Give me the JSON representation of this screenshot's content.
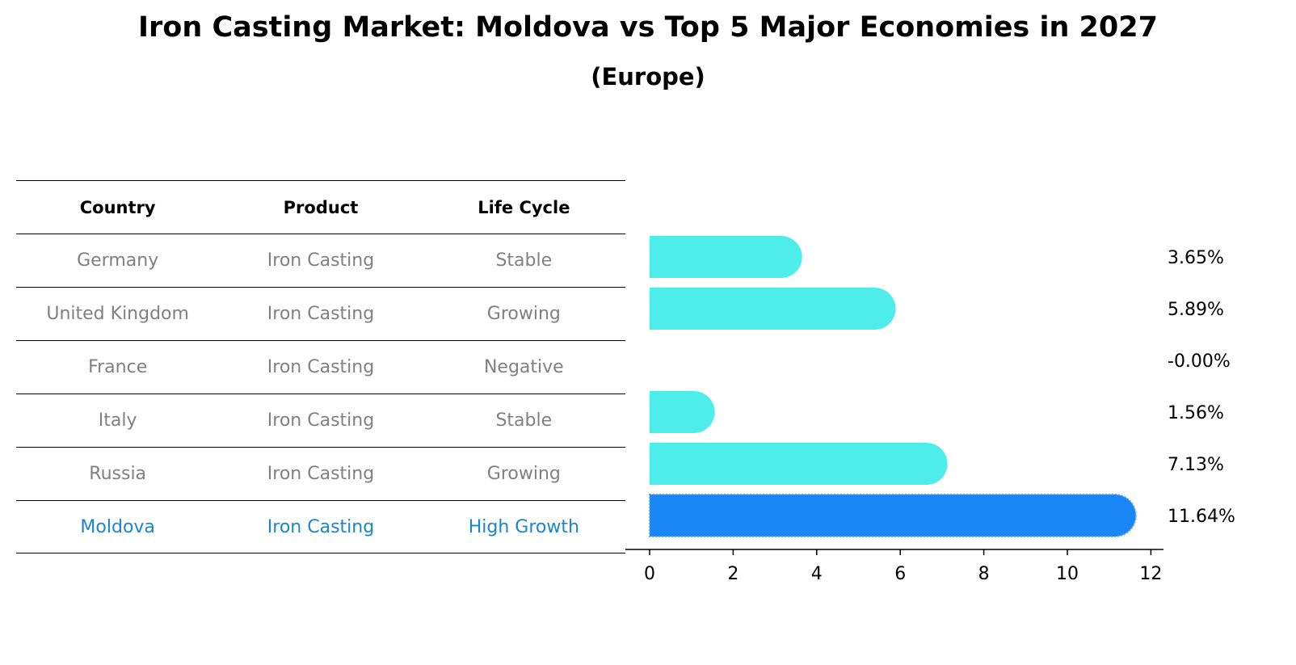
{
  "title": "Iron Casting Market: Moldova vs Top 5 Major Economies in 2027",
  "subtitle": "(Europe)",
  "table": {
    "headers": [
      "Country",
      "Product",
      "Life Cycle"
    ],
    "rows": [
      [
        "Germany",
        "Iron Casting",
        "Stable"
      ],
      [
        "United Kingdom",
        "Iron Casting",
        "Growing"
      ],
      [
        "France",
        "Iron Casting",
        "Negative"
      ],
      [
        "Italy",
        "Iron Casting",
        "Stable"
      ],
      [
        "Russia",
        "Iron Casting",
        "Growing"
      ],
      [
        "Moldova",
        "Iron Casting",
        "High Growth"
      ]
    ],
    "highlight_color": "#1a85cc",
    "text_color": "#808080"
  },
  "chart_data": {
    "type": "bar",
    "orientation": "horizontal",
    "categories": [
      "Germany",
      "United Kingdom",
      "France",
      "Italy",
      "Russia",
      "Moldova"
    ],
    "values": [
      3.65,
      5.89,
      -0.0,
      1.56,
      7.13,
      11.64
    ],
    "value_labels": [
      "3.65%",
      "5.89%",
      "-0.00%",
      "1.56%",
      "7.13%",
      "11.64%"
    ],
    "highlight_index": 5,
    "xlim": [
      0,
      12
    ],
    "xticks": [
      0,
      2,
      4,
      6,
      8,
      10,
      12
    ],
    "colors": {
      "default": "#4deeea",
      "highlight": "#1a85f5"
    },
    "grid": false
  }
}
